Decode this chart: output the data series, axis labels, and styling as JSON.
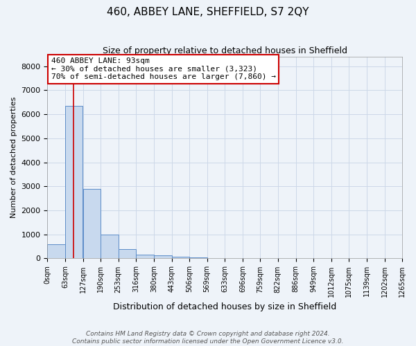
{
  "title": "460, ABBEY LANE, SHEFFIELD, S7 2QY",
  "subtitle": "Size of property relative to detached houses in Sheffield",
  "xlabel": "Distribution of detached houses by size in Sheffield",
  "ylabel": "Number of detached properties",
  "bar_heights": [
    600,
    6350,
    2900,
    1000,
    380,
    170,
    120,
    70,
    30,
    5,
    5,
    3,
    2,
    1,
    1,
    1,
    0,
    0,
    0,
    0
  ],
  "bin_labels": [
    "0sqm",
    "63sqm",
    "127sqm",
    "190sqm",
    "253sqm",
    "316sqm",
    "380sqm",
    "443sqm",
    "506sqm",
    "569sqm",
    "633sqm",
    "696sqm",
    "759sqm",
    "822sqm",
    "886sqm",
    "949sqm",
    "1012sqm",
    "1075sqm",
    "1139sqm",
    "1202sqm",
    "1265sqm"
  ],
  "bin_edges": [
    0,
    63,
    127,
    190,
    253,
    316,
    380,
    443,
    506,
    569,
    633,
    696,
    759,
    822,
    886,
    949,
    1012,
    1075,
    1139,
    1202,
    1265
  ],
  "bar_color": "#c8d9ee",
  "bar_edge_color": "#5b8cc8",
  "property_line_x": 93,
  "property_line_color": "#cc0000",
  "annotation_text": "460 ABBEY LANE: 93sqm\n← 30% of detached houses are smaller (3,323)\n70% of semi-detached houses are larger (7,860) →",
  "annotation_box_color": "#cc0000",
  "annotation_bg_color": "#ffffff",
  "ylim": [
    0,
    8400
  ],
  "yticks": [
    0,
    1000,
    2000,
    3000,
    4000,
    5000,
    6000,
    7000,
    8000
  ],
  "footer_line1": "Contains HM Land Registry data © Crown copyright and database right 2024.",
  "footer_line2": "Contains public sector information licensed under the Open Government Licence v3.0.",
  "grid_color": "#ccd8e8",
  "bg_color": "#eef3f9"
}
